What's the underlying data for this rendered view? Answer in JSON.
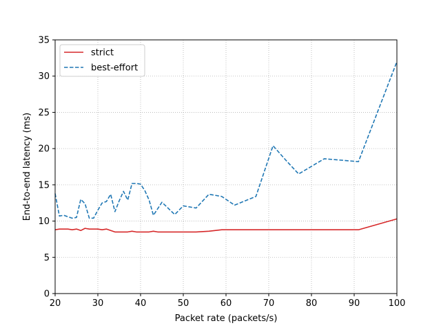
{
  "chart_data": {
    "type": "line",
    "title": "",
    "xlabel": "Packet rate (packets/s)",
    "ylabel": "End-to-end latency (ms)",
    "xlim": [
      20,
      100
    ],
    "ylim": [
      0,
      35
    ],
    "xticks": [
      20,
      30,
      40,
      50,
      60,
      70,
      80,
      90,
      100
    ],
    "yticks": [
      0,
      5,
      10,
      15,
      20,
      25,
      30,
      35
    ],
    "grid": true,
    "legend_position": "top-left",
    "series": [
      {
        "name": "strict",
        "color": "#d62728",
        "style": "solid",
        "x": [
          20,
          21,
          22,
          23,
          24,
          25,
          26,
          27,
          28,
          29,
          30,
          31,
          32,
          33,
          34,
          35,
          36,
          37,
          38,
          39,
          40,
          41,
          42,
          43,
          44,
          45,
          47,
          50,
          53,
          56,
          59,
          62,
          65,
          68,
          71,
          74,
          77,
          80,
          83,
          86,
          88,
          91,
          100
        ],
        "y": [
          8.8,
          8.9,
          8.9,
          8.9,
          8.8,
          8.9,
          8.7,
          9.0,
          8.9,
          8.9,
          8.9,
          8.8,
          8.9,
          8.7,
          8.5,
          8.5,
          8.5,
          8.5,
          8.6,
          8.5,
          8.5,
          8.5,
          8.5,
          8.6,
          8.5,
          8.5,
          8.5,
          8.5,
          8.5,
          8.6,
          8.8,
          8.8,
          8.8,
          8.8,
          8.8,
          8.8,
          8.8,
          8.8,
          8.8,
          8.8,
          8.8,
          8.8,
          10.3
        ]
      },
      {
        "name": "best-effort",
        "color": "#1f77b4",
        "style": "dashed",
        "x": [
          20,
          21,
          22,
          23,
          24,
          25,
          26,
          27,
          28,
          29,
          30,
          31,
          32,
          33,
          34,
          35,
          36,
          37,
          38,
          39,
          40,
          41,
          42,
          43,
          45,
          48,
          50,
          53,
          56,
          59,
          62,
          67,
          71,
          74,
          77,
          83,
          91,
          100
        ],
        "y": [
          13.8,
          10.7,
          10.8,
          10.6,
          10.4,
          10.5,
          13.0,
          12.4,
          10.4,
          10.4,
          11.5,
          12.5,
          12.7,
          13.7,
          11.3,
          12.8,
          14.1,
          12.9,
          15.2,
          15.2,
          15.1,
          14.2,
          12.9,
          10.8,
          12.6,
          10.9,
          12.1,
          11.8,
          13.7,
          13.4,
          12.2,
          13.4,
          20.4,
          18.4,
          16.5,
          18.6,
          18.2,
          32.0
        ]
      }
    ]
  }
}
